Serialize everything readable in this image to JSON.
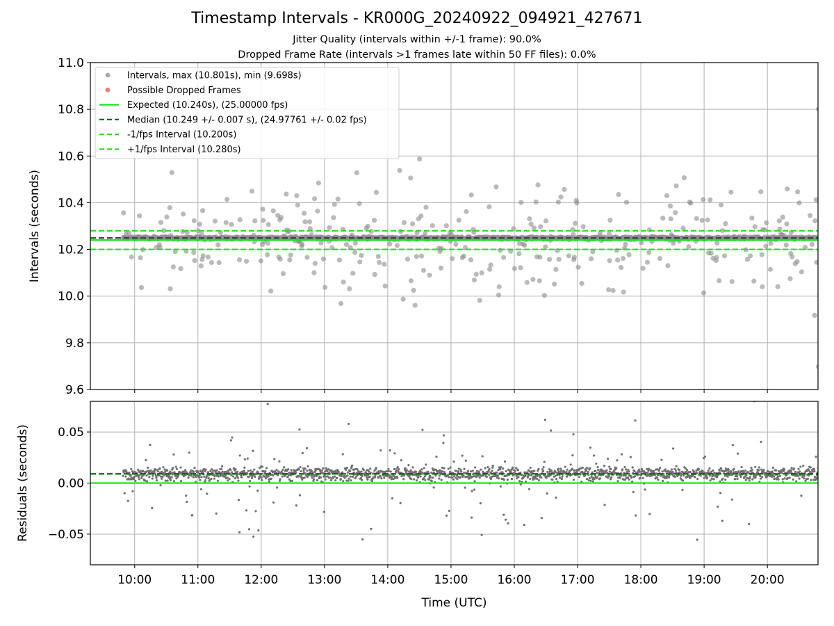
{
  "chart_data": {
    "type": "scatter",
    "title": "Timestamp Intervals - KR000G_20240922_094921_427671",
    "subtitle_lines": [
      "Jitter Quality (intervals within +/-1 frame): 90.0%",
      "Dropped Frame Rate (intervals >1 frames late within 50 FF files): 0.0%"
    ],
    "xlabel": "Time (UTC)",
    "x_start": "09:49",
    "x_end": "20:49",
    "xlim_hours": [
      9.3,
      20.8
    ],
    "xticks": [
      "10:00",
      "11:00",
      "12:00",
      "13:00",
      "14:00",
      "15:00",
      "16:00",
      "17:00",
      "18:00",
      "19:00",
      "20:00"
    ],
    "grid": true,
    "top_panel": {
      "ylabel": "Intervals (seconds)",
      "ylim": [
        9.6,
        11.0
      ],
      "yticks": [
        "9.6",
        "9.8",
        "10.0",
        "10.2",
        "10.4",
        "10.6",
        "10.8",
        "11.0"
      ],
      "expected": 10.24,
      "median": 10.249,
      "lower": 10.2,
      "upper": 10.28,
      "max_interval": 10.801,
      "min_interval": 9.698,
      "legend_placement": "upper-left",
      "legend": [
        {
          "label": "Intervals, max (10.801s), min (9.698s)",
          "kind": "dot",
          "color": "#a0a0a0"
        },
        {
          "label": "Possible Dropped Frames",
          "kind": "dot",
          "color": "#f46b6b"
        },
        {
          "label": "Expected (10.240s), (25.00000 fps)",
          "kind": "solid",
          "color": "#22e022"
        },
        {
          "label": "Median (10.249 +/- 0.007 s), (24.97761 +/- 0.02 fps)",
          "kind": "dashed",
          "color": "#0a6a0a"
        },
        {
          "label": "-1/fps Interval (10.200s)",
          "kind": "dashed",
          "color": "#22e022"
        },
        {
          "label": "+1/fps Interval (10.280s)",
          "kind": "dashed",
          "color": "#22e022"
        }
      ]
    },
    "bottom_panel": {
      "ylabel": "Residuals (seconds)",
      "ylim": [
        -0.08,
        0.08
      ],
      "yticks": [
        "−0.05",
        "0.00",
        "0.05"
      ],
      "zero_line": 0.0,
      "median_residual": 0.009
    },
    "colors": {
      "points": "#8c8c8c",
      "expected": "#22e022",
      "median": "#0a6a0a",
      "bounds": "#22e022",
      "grid": "#b0b0b0"
    }
  }
}
